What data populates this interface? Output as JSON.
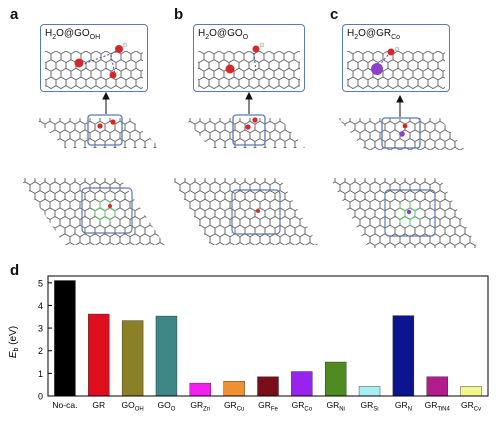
{
  "panels": {
    "a": {
      "letter": "a",
      "formula": "H",
      "s1": "2",
      "mid": "O@GO",
      "s2": "OH"
    },
    "b": {
      "letter": "b",
      "formula": "H",
      "s1": "2",
      "mid": "O@GO",
      "s2": "O"
    },
    "c": {
      "letter": "c",
      "formula": "H",
      "s1": "2",
      "mid": "O@GR",
      "s2": "Co"
    },
    "d": {
      "letter": "d"
    }
  },
  "colors": {
    "lattice": "#4a4a4a",
    "lattice_green": "#5bbf6a",
    "inset_border": "#5a7bb0",
    "oxygen": "#d62828",
    "cobalt": "#8a3fd1"
  },
  "chart_data": {
    "type": "bar",
    "title": "",
    "xlabel": "",
    "ylabel": "E_b (eV)",
    "ylabel_main": "E",
    "ylabel_sub": "b",
    "ylabel_unit": " (eV)",
    "ylim": [
      0,
      5.3
    ],
    "yticks": [
      "0",
      "1",
      "2",
      "3",
      "4",
      "5"
    ],
    "categories": [
      {
        "main": "No-ca.",
        "sub": ""
      },
      {
        "main": "GR",
        "sub": ""
      },
      {
        "main": "GO",
        "sub": "OH"
      },
      {
        "main": "GO",
        "sub": "O"
      },
      {
        "main": "GR",
        "sub": "Zn"
      },
      {
        "main": "GR",
        "sub": "Cu"
      },
      {
        "main": "GR",
        "sub": "Fe"
      },
      {
        "main": "GR",
        "sub": "Co"
      },
      {
        "main": "GR",
        "sub": "Ni"
      },
      {
        "main": "GR",
        "sub": "Si"
      },
      {
        "main": "GR",
        "sub": "N"
      },
      {
        "main": "GR",
        "sub": "TiN4"
      },
      {
        "main": "GR",
        "sub": "Cv"
      }
    ],
    "values": [
      5.1,
      3.62,
      3.33,
      3.53,
      0.57,
      0.65,
      0.85,
      1.08,
      1.5,
      0.42,
      3.55,
      0.85,
      0.42
    ],
    "bar_colors": [
      "#000000",
      "#dd0f1f",
      "#8c8027",
      "#3f8787",
      "#f21ff0",
      "#f09030",
      "#7a0d1a",
      "#9a22ee",
      "#4f8a22",
      "#a9eef2",
      "#0b1590",
      "#b21c8c",
      "#f4f48c"
    ],
    "grid": false,
    "legend": "none"
  }
}
